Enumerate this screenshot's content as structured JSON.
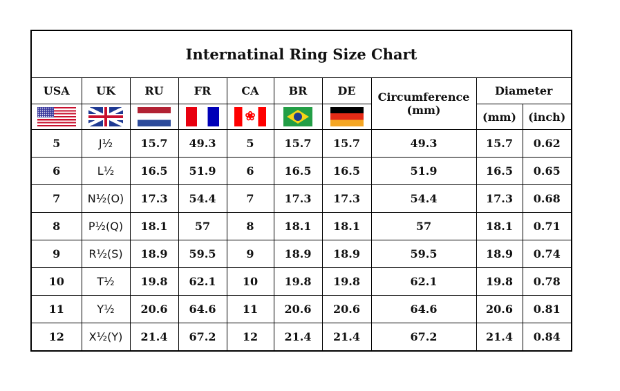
{
  "title": "Internatinal Ring Size Chart",
  "headers": {
    "usa": "USA",
    "uk": "UK",
    "ru": "RU",
    "fr": "FR",
    "ca": "CA",
    "br": "BR",
    "de": "DE",
    "circumference": "Circumference",
    "circumference_unit": "(mm)",
    "diameter": "Diameter",
    "mm": "(mm)",
    "inch": "(inch)"
  },
  "flags": [
    "us-flag-icon",
    "uk-flag-icon",
    "netherlands-flag-icon",
    "france-flag-icon",
    "canada-flag-icon",
    "brazil-flag-icon",
    "germany-flag-icon"
  ],
  "rows": [
    [
      "5",
      "J½",
      "15.7",
      "49.3",
      "5",
      "15.7",
      "15.7",
      "49.3",
      "15.7",
      "0.62"
    ],
    [
      "6",
      "L½",
      "16.5",
      "51.9",
      "6",
      "16.5",
      "16.5",
      "51.9",
      "16.5",
      "0.65"
    ],
    [
      "7",
      "N½(O)",
      "17.3",
      "54.4",
      "7",
      "17.3",
      "17.3",
      "54.4",
      "17.3",
      "0.68"
    ],
    [
      "8",
      "P½(Q)",
      "18.1",
      "57",
      "8",
      "18.1",
      "18.1",
      "57",
      "18.1",
      "0.71"
    ],
    [
      "9",
      "R½(S)",
      "18.9",
      "59.5",
      "9",
      "18.9",
      "18.9",
      "59.5",
      "18.9",
      "0.74"
    ],
    [
      "10",
      "T½",
      "19.8",
      "62.1",
      "10",
      "19.8",
      "19.8",
      "62.1",
      "19.8",
      "0.78"
    ],
    [
      "11",
      "Y½",
      "20.6",
      "64.6",
      "11",
      "20.6",
      "20.6",
      "64.6",
      "20.6",
      "0.81"
    ],
    [
      "12",
      "X½(Y)",
      "21.4",
      "67.2",
      "12",
      "21.4",
      "21.4",
      "67.2",
      "21.4",
      "0.84"
    ]
  ]
}
